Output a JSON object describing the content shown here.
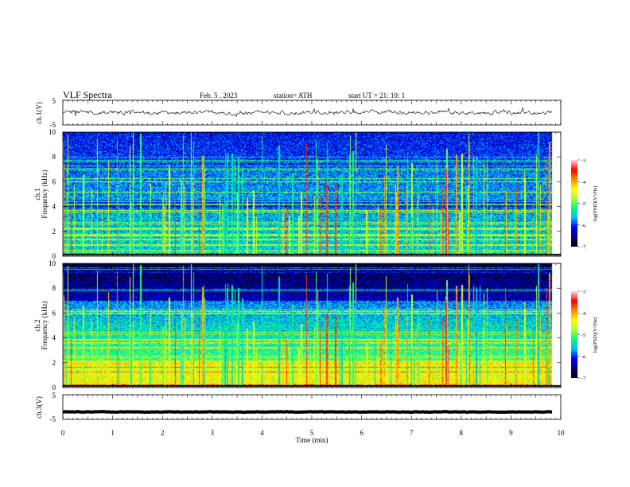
{
  "header": {
    "title": "VLF  Spectra",
    "date": "Feb. 5  , 2023",
    "station": "station= ATH",
    "start_ut": "start  UT  =    21: 10: 1"
  },
  "colors": {
    "bg_dark": "#00001a",
    "colormap": [
      "#000000",
      "#00008b",
      "#0000ff",
      "#00bfff",
      "#00ff7f",
      "#adff2f",
      "#ffff00",
      "#ff8c00",
      "#ff0000",
      "#ffd0d0"
    ]
  },
  "chart_data": [
    {
      "type": "line",
      "name": "ch1-waveform",
      "ylabel": "ch.1(V)",
      "ylim": [
        -5,
        5
      ],
      "yticks": [
        "5",
        "-5"
      ],
      "x_range_min": [
        0,
        9.83
      ],
      "trace_mean": 0,
      "trace_amplitude": 0.8
    },
    {
      "type": "heatmap",
      "name": "ch1-spectrogram",
      "ylabel_line1": "ch.1",
      "ylabel_line2": "Frequency  (kHz)",
      "ylim": [
        0,
        10
      ],
      "yticks": [
        "0",
        "2",
        "4",
        "6",
        "8",
        "10"
      ],
      "x_range_min": [
        0,
        9.83
      ],
      "colorbar": {
        "label": "log(PSD)(V²/Hz)",
        "range": [
          -7,
          -3
        ],
        "ticks": [
          "-3",
          "-4",
          "-5",
          "-6",
          "-7"
        ]
      }
    },
    {
      "type": "heatmap",
      "name": "ch2-spectrogram",
      "ylabel_line1": "ch.2",
      "ylabel_line2": "Frequency  (kHz)",
      "ylim": [
        0,
        10
      ],
      "yticks": [
        "0",
        "2",
        "4",
        "6",
        "8",
        "10"
      ],
      "x_range_min": [
        0,
        9.83
      ],
      "colorbar": {
        "label": "log(PSD)(V²/Hz)",
        "range": [
          -7,
          -3
        ],
        "ticks": [
          "-3",
          "-4",
          "-5",
          "-6",
          "-7"
        ]
      }
    },
    {
      "type": "line",
      "name": "ch3-waveform",
      "ylabel": "ch.3(V)",
      "ylim": [
        -5,
        5
      ],
      "yticks": [
        "5",
        "-5"
      ],
      "x_range_min": [
        0,
        9.83
      ],
      "trace_mean": -2,
      "trace_amplitude": 0.1
    }
  ],
  "xaxis": {
    "label": "Time  (min)",
    "range": [
      0,
      10
    ],
    "ticks": [
      "0",
      "1",
      "2",
      "3",
      "4",
      "5",
      "6",
      "7",
      "8",
      "9",
      "10"
    ]
  }
}
